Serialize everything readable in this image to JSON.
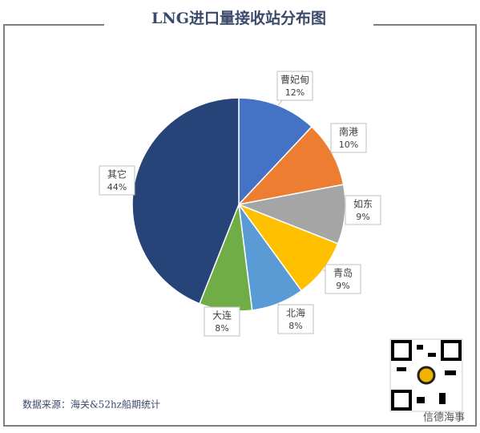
{
  "chart_data": {
    "type": "pie",
    "title": "LNG进口量接收站分布图",
    "categories": [
      "曹妃甸",
      "南港",
      "如东",
      "青岛",
      "北海",
      "大连",
      "其它"
    ],
    "values": [
      12,
      10,
      9,
      9,
      8,
      8,
      44
    ],
    "value_labels": [
      "12%",
      "10%",
      "9%",
      "9%",
      "8%",
      "8%",
      "44%"
    ],
    "colors": [
      "#4472c4",
      "#ed7d31",
      "#a5a5a5",
      "#ffc000",
      "#5b9bd5",
      "#70ad47",
      "#264478"
    ],
    "source": "数据来源：海关&52hz船期统计"
  },
  "watermark": "信德海事"
}
